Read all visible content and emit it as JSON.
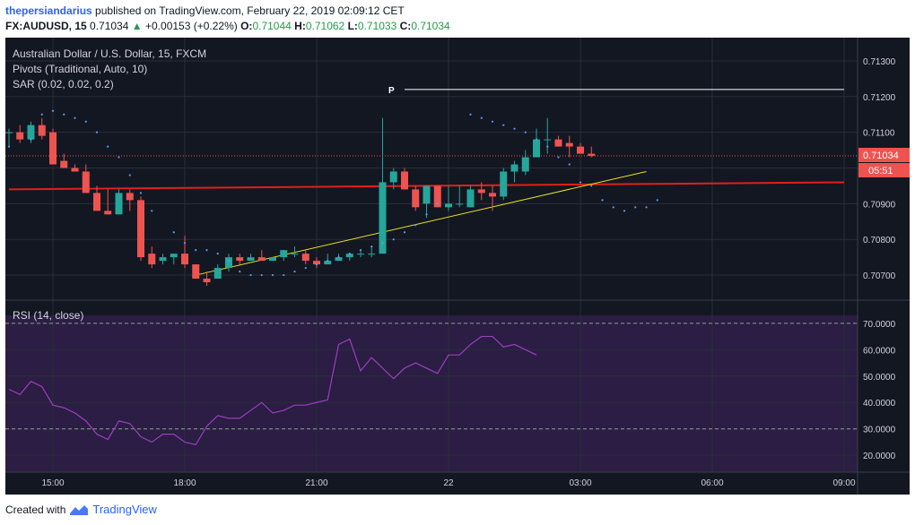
{
  "header": {
    "username": "thepersiandarius",
    "published_text": "published on TradingView.com, February 22, 2019 02:09:12 CET",
    "symbol": "FX:AUDUSD, 15",
    "last": "0.71034",
    "change": "+0.00153 (+0.22%)",
    "o_label": "O:",
    "o_value": "0.71044",
    "h_label": "H:",
    "h_value": "0.71062",
    "l_label": "L:",
    "l_value": "0.71033",
    "c_label": "C:",
    "c_value": "0.71034"
  },
  "legend": {
    "title": "Australian Dollar / U.S. Dollar, 15, FXCM",
    "pivots": "Pivots (Traditional, Auto, 10)",
    "sar": "SAR (0.02, 0.02, 0.2)",
    "rsi": "RSI (14, close)",
    "pivot_label": "P"
  },
  "price_badges": {
    "last": "0.71034",
    "countdown": "05:51"
  },
  "footer": {
    "created_with": "Created with",
    "brand": "TradingView"
  },
  "colors": {
    "background": "#131722",
    "grid": "#2a2e39",
    "up": "#26a69a",
    "down": "#ef5350",
    "sar": "#5b9cf6",
    "trendline": "#e5e21c",
    "resistance": "#e0201b",
    "rsi_line": "#9b3fbf",
    "rsi_band": "#2b1d43",
    "pivot": "#ffffff",
    "axis_text": "#d1d4dc",
    "last_badge": "#ef5350"
  },
  "chart_data": [
    {
      "type": "candlestick",
      "title": "Australian Dollar / U.S. Dollar, 15, FXCM",
      "x_ticks": [
        "15:00",
        "18:00",
        "21:00",
        "22",
        "03:00",
        "06:00",
        "09:00"
      ],
      "x_tick_positions": [
        4,
        16,
        28,
        40,
        52,
        64,
        76
      ],
      "y_ticks": [
        "0.71300",
        "0.71200",
        "0.71100",
        "0.71000",
        "0.70900",
        "0.70800",
        "0.70700"
      ],
      "ylim": [
        0.70665,
        0.71335
      ],
      "bar_spacing_x": [
        0,
        76
      ],
      "candles": [
        [
          0.711,
          0.7111,
          0.7106,
          0.711
        ],
        [
          0.711,
          0.7112,
          0.7107,
          0.7108
        ],
        [
          0.7108,
          0.7113,
          0.7107,
          0.7112
        ],
        [
          0.7112,
          0.7114,
          0.7108,
          0.7109
        ],
        [
          0.711,
          0.7111,
          0.7101,
          0.7101
        ],
        [
          0.7102,
          0.7104,
          0.71,
          0.71
        ],
        [
          0.71,
          0.7101,
          0.7099,
          0.7099
        ],
        [
          0.7099,
          0.7101,
          0.7093,
          0.7093
        ],
        [
          0.7093,
          0.7095,
          0.7088,
          0.7088
        ],
        [
          0.7088,
          0.7094,
          0.7087,
          0.7087
        ],
        [
          0.7087,
          0.7094,
          0.7087,
          0.7093
        ],
        [
          0.7093,
          0.7094,
          0.7088,
          0.7091
        ],
        [
          0.7091,
          0.7092,
          0.7074,
          0.7075
        ],
        [
          0.7076,
          0.7078,
          0.7072,
          0.7073
        ],
        [
          0.7074,
          0.7076,
          0.7073,
          0.7075
        ],
        [
          0.7075,
          0.7076,
          0.7073,
          0.7076
        ],
        [
          0.7076,
          0.7081,
          0.7072,
          0.7073
        ],
        [
          0.7073,
          0.7073,
          0.7069,
          0.7069
        ],
        [
          0.7069,
          0.7071,
          0.7067,
          0.7068
        ],
        [
          0.7069,
          0.7073,
          0.7069,
          0.7072
        ],
        [
          0.7072,
          0.7076,
          0.7071,
          0.7075
        ],
        [
          0.7075,
          0.7076,
          0.7073,
          0.7074
        ],
        [
          0.7074,
          0.7076,
          0.7074,
          0.7075
        ],
        [
          0.7075,
          0.7077,
          0.7074,
          0.7074
        ],
        [
          0.7074,
          0.7075,
          0.7074,
          0.7075
        ],
        [
          0.7075,
          0.7077,
          0.7074,
          0.7077
        ],
        [
          0.7076,
          0.7078,
          0.7075,
          0.7076
        ],
        [
          0.7076,
          0.7077,
          0.7073,
          0.7074
        ],
        [
          0.7074,
          0.7075,
          0.7072,
          0.7073
        ],
        [
          0.7073,
          0.7076,
          0.7073,
          0.7074
        ],
        [
          0.7074,
          0.7076,
          0.7074,
          0.7075
        ],
        [
          0.7075,
          0.7076,
          0.7074,
          0.7076
        ],
        [
          0.7076,
          0.7077,
          0.7075,
          0.7076
        ],
        [
          0.7076,
          0.7078,
          0.7075,
          0.7076
        ],
        [
          0.7076,
          0.7114,
          0.7076,
          0.7096
        ],
        [
          0.7096,
          0.71,
          0.7094,
          0.7099
        ],
        [
          0.7099,
          0.71,
          0.7094,
          0.7094
        ],
        [
          0.7094,
          0.7095,
          0.7088,
          0.7089
        ],
        [
          0.709,
          0.7095,
          0.7086,
          0.7095
        ],
        [
          0.7095,
          0.7095,
          0.7089,
          0.7089
        ],
        [
          0.7089,
          0.7095,
          0.7088,
          0.709
        ],
        [
          0.709,
          0.7095,
          0.7089,
          0.709
        ],
        [
          0.7089,
          0.7095,
          0.7089,
          0.7094
        ],
        [
          0.7094,
          0.7096,
          0.7091,
          0.7093
        ],
        [
          0.7093,
          0.7095,
          0.7088,
          0.7092
        ],
        [
          0.7092,
          0.71,
          0.7091,
          0.7099
        ],
        [
          0.7099,
          0.7102,
          0.7096,
          0.7101
        ],
        [
          0.7099,
          0.7105,
          0.7098,
          0.7103
        ],
        [
          0.7103,
          0.7111,
          0.7103,
          0.7108
        ],
        [
          0.7108,
          0.7114,
          0.7104,
          0.7108
        ],
        [
          0.7108,
          0.7109,
          0.7106,
          0.7106
        ],
        [
          0.7107,
          0.7109,
          0.7103,
          0.7106
        ],
        [
          0.7106,
          0.7107,
          0.7104,
          0.7104
        ],
        [
          0.7104,
          0.7106,
          0.7103,
          0.71034
        ]
      ],
      "sar": [
        [
          0,
          0.7106
        ],
        [
          2,
          0.7108
        ],
        [
          3,
          0.7115
        ],
        [
          4,
          0.7116
        ],
        [
          5,
          0.7115
        ],
        [
          6,
          0.7114
        ],
        [
          7,
          0.7113
        ],
        [
          8,
          0.711
        ],
        [
          9,
          0.7106
        ],
        [
          10,
          0.7103
        ],
        [
          11,
          0.7098
        ],
        [
          12,
          0.7093
        ],
        [
          13,
          0.7088
        ],
        [
          15,
          0.7082
        ],
        [
          16,
          0.7079
        ],
        [
          17,
          0.7077
        ],
        [
          18,
          0.7077
        ],
        [
          19,
          0.7076
        ],
        [
          20,
          0.7074
        ],
        [
          21,
          0.7071
        ],
        [
          22,
          0.707
        ],
        [
          23,
          0.707
        ],
        [
          24,
          0.707
        ],
        [
          25,
          0.707
        ],
        [
          26,
          0.7071
        ],
        [
          27,
          0.7072
        ],
        [
          28,
          0.7073
        ],
        [
          29,
          0.7074
        ],
        [
          30,
          0.7075
        ],
        [
          31,
          0.7076
        ],
        [
          32,
          0.7077
        ],
        [
          33,
          0.7078
        ],
        [
          34,
          0.7079
        ],
        [
          35,
          0.708
        ],
        [
          36,
          0.7082
        ],
        [
          37,
          0.7084
        ],
        [
          38,
          0.7087
        ],
        [
          39,
          0.709
        ],
        [
          42,
          0.7115
        ],
        [
          43,
          0.7114
        ],
        [
          44,
          0.7113
        ],
        [
          45,
          0.7112
        ],
        [
          46,
          0.7111
        ],
        [
          47,
          0.711
        ],
        [
          48,
          0.7108
        ],
        [
          49,
          0.7106
        ],
        [
          50,
          0.7103
        ],
        [
          51,
          0.7101
        ],
        [
          52,
          0.7096
        ],
        [
          53,
          0.7095
        ],
        [
          54,
          0.7091
        ],
        [
          55,
          0.7089
        ],
        [
          56,
          0.7088
        ],
        [
          57,
          0.7089
        ],
        [
          58,
          0.7089
        ],
        [
          59,
          0.7091
        ]
      ],
      "resistance_line": {
        "from": [
          0,
          0.7094
        ],
        "to": [
          76,
          0.7096
        ]
      },
      "trendline": {
        "from": [
          17,
          0.707
        ],
        "to": [
          58,
          0.7099
        ]
      },
      "pivot_line": {
        "from": [
          36,
          0.7122
        ],
        "to": [
          76,
          0.7122
        ],
        "label": "P"
      },
      "last_price": 0.71034
    },
    {
      "type": "line",
      "title": "RSI (14, close)",
      "y_ticks": [
        "70.0000",
        "60.0000",
        "50.0000",
        "40.0000",
        "30.0000",
        "20.0000"
      ],
      "ylim": [
        17,
        73
      ],
      "bands": [
        30,
        70
      ],
      "values": [
        45,
        43,
        48,
        46,
        39,
        38,
        36,
        33,
        28,
        26,
        33,
        32,
        27,
        25,
        28,
        28,
        25,
        24,
        31,
        35,
        34,
        34,
        37,
        40,
        36,
        37,
        39,
        39,
        40,
        41,
        62,
        64,
        52,
        57,
        53,
        49,
        53,
        55,
        53,
        51,
        58,
        58,
        62,
        65,
        65,
        61,
        62,
        60,
        58
      ]
    }
  ]
}
